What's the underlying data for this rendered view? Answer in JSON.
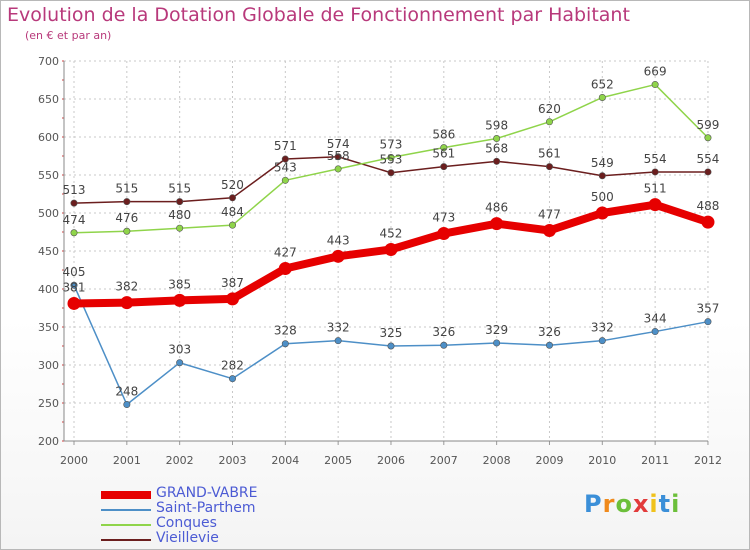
{
  "title": "Evolution de la Dotation Globale de Fonctionnement par Habitant",
  "subtitle": "(en € et par an)",
  "logo": {
    "text": "Proxiti",
    "letters": [
      "P",
      "r",
      "o",
      "x",
      "i",
      "t",
      "i"
    ],
    "colors": [
      "#3b8fd8",
      "#f08a1c",
      "#6cbf3a",
      "#e23b3b",
      "#f0c21c",
      "#3b8fd8",
      "#6cbf3a"
    ]
  },
  "chart_data": {
    "type": "line",
    "title": "Evolution de la Dotation Globale de Fonctionnement par Habitant",
    "subtitle": "(en € et par an)",
    "x": [
      "2000",
      "2001",
      "2002",
      "2003",
      "2004",
      "2005",
      "2006",
      "2007",
      "2008",
      "2009",
      "2010",
      "2011",
      "2012"
    ],
    "ylim": [
      200,
      700
    ],
    "yticks": [
      200,
      250,
      300,
      350,
      400,
      450,
      500,
      550,
      600,
      650,
      700
    ],
    "grid": "horizontal dotted",
    "legend_position": "bottom-left",
    "series": [
      {
        "name": "GRAND-VABRE",
        "color": "#e60000",
        "values": [
          381,
          382,
          385,
          387,
          427,
          443,
          452,
          473,
          486,
          477,
          500,
          511,
          488
        ]
      },
      {
        "name": "Saint-Parthem",
        "color": "#4d8fc7",
        "values": [
          405,
          248,
          303,
          282,
          328,
          332,
          325,
          326,
          329,
          326,
          332,
          344,
          357
        ]
      },
      {
        "name": "Conques",
        "color": "#8fd44a",
        "values": [
          474,
          476,
          480,
          484,
          543,
          558,
          573,
          586,
          598,
          620,
          652,
          669,
          599
        ]
      },
      {
        "name": "Vieillevie",
        "color": "#6b1e1e",
        "values": [
          513,
          515,
          515,
          520,
          571,
          574,
          553,
          561,
          568,
          561,
          549,
          554,
          554
        ]
      }
    ]
  }
}
